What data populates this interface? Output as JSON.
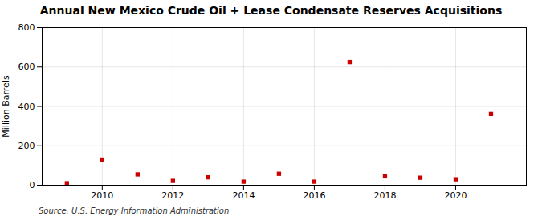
{
  "chart_data": {
    "type": "scatter",
    "title": "Annual New Mexico Crude Oil + Lease Condensate Reserves Acquisitions",
    "ylabel": "Million Barrels",
    "source": "Source: U.S. Energy Information Administration",
    "x": [
      2009,
      2010,
      2011,
      2012,
      2013,
      2014,
      2015,
      2016,
      2017,
      2018,
      2019,
      2020,
      2021
    ],
    "values": [
      10,
      130,
      55,
      22,
      40,
      18,
      58,
      18,
      625,
      45,
      38,
      30,
      362
    ],
    "color": "#cc0000",
    "marker": "square",
    "xlim": [
      2008.3,
      2022.0
    ],
    "xticks": [
      2010,
      2012,
      2014,
      2016,
      2018,
      2020
    ],
    "ylim": [
      0,
      800
    ],
    "yticks": [
      0,
      200,
      400,
      600,
      800
    ],
    "grid": true
  }
}
